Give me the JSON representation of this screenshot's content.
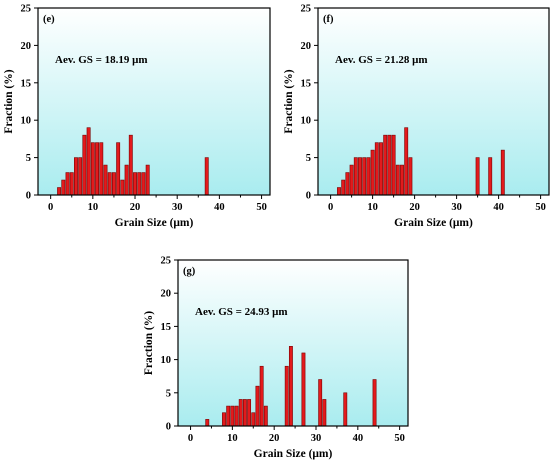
{
  "chart_data": [
    {
      "type": "bar",
      "panel_label": "(e)",
      "annotation": "Aev. GS = 18.19 μm",
      "xlabel": "Grain Size (μm)",
      "ylabel": "Fraction (%)",
      "xlim": [
        -3,
        52
      ],
      "ylim": [
        0,
        25
      ],
      "xticks": [
        0,
        10,
        20,
        30,
        40,
        50
      ],
      "yticks": [
        0,
        5,
        10,
        15,
        20,
        25
      ],
      "grid": false,
      "background_gradient": [
        "#ffffff",
        "#a9ecef"
      ],
      "bar_color": "#e31a1c",
      "x": [
        2,
        3,
        4,
        5,
        6,
        7,
        8,
        9,
        10,
        11,
        12,
        13,
        14,
        15,
        16,
        17,
        18,
        19,
        20,
        21,
        22,
        23,
        24,
        25,
        26,
        27,
        30,
        31,
        37
      ],
      "values": [
        1,
        2,
        3,
        3,
        5,
        5,
        8,
        9,
        7,
        7,
        7,
        4,
        3,
        3,
        7,
        2,
        4,
        8,
        3,
        3,
        3,
        4,
        0,
        0,
        0,
        0,
        0,
        0,
        5
      ]
    },
    {
      "type": "bar",
      "panel_label": "(f)",
      "annotation": "Aev. GS = 21.28 μm",
      "xlabel": "Grain Size (μm)",
      "ylabel": "Fraction (%)",
      "xlim": [
        -3,
        52
      ],
      "ylim": [
        0,
        25
      ],
      "xticks": [
        0,
        10,
        20,
        30,
        40,
        50
      ],
      "yticks": [
        0,
        5,
        10,
        15,
        20,
        25
      ],
      "grid": false,
      "background_gradient": [
        "#ffffff",
        "#a9ecef"
      ],
      "bar_color": "#e31a1c",
      "x": [
        2,
        3,
        4,
        5,
        6,
        7,
        8,
        9,
        10,
        11,
        12,
        13,
        14,
        15,
        16,
        17,
        18,
        19,
        20,
        21,
        22,
        23,
        24,
        25,
        26,
        35,
        38,
        41
      ],
      "values": [
        1,
        2,
        3,
        4,
        5,
        5,
        5,
        5,
        6,
        7,
        7,
        8,
        8,
        8,
        4,
        4,
        9,
        5,
        0,
        0,
        0,
        0,
        0,
        0,
        0,
        5,
        5,
        6
      ]
    },
    {
      "type": "bar",
      "panel_label": "(g)",
      "annotation": "Aev. GS = 24.93 μm",
      "xlabel": "Grain Size (μm)",
      "ylabel": "Fraction (%)",
      "xlim": [
        -3,
        52
      ],
      "ylim": [
        0,
        25
      ],
      "xticks": [
        0,
        10,
        20,
        30,
        40,
        50
      ],
      "yticks": [
        0,
        5,
        10,
        15,
        20,
        25
      ],
      "grid": false,
      "background_gradient": [
        "#ffffff",
        "#a9ecef"
      ],
      "bar_color": "#e31a1c",
      "x": [
        4,
        8,
        9,
        10,
        11,
        12,
        13,
        14,
        15,
        16,
        17,
        18,
        19,
        20,
        21,
        22,
        23,
        24,
        25,
        26,
        27,
        28,
        29,
        30,
        31,
        32,
        37,
        44
      ],
      "values": [
        1,
        2,
        3,
        3,
        3,
        4,
        4,
        4,
        2,
        6,
        9,
        3,
        0,
        0,
        0,
        0,
        9,
        12,
        0,
        0,
        11,
        0,
        0,
        0,
        7,
        4,
        5,
        7
      ]
    }
  ]
}
